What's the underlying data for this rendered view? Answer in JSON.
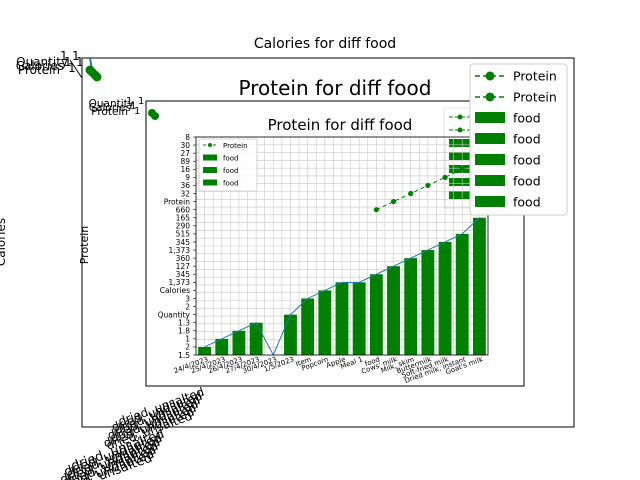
{
  "outer": {
    "title": "Calories for diff food",
    "ylabel": "Calories",
    "legend": [
      {
        "label": "Protein",
        "kind": "line"
      },
      {
        "label": "Protein",
        "kind": "line"
      },
      {
        "label": "food",
        "kind": "bar"
      },
      {
        "label": "food",
        "kind": "bar"
      },
      {
        "label": "food",
        "kind": "bar"
      },
      {
        "label": "food",
        "kind": "bar"
      },
      {
        "label": "food",
        "kind": "bar"
      }
    ],
    "corner_ytick_labels": [
      "Quantity",
      "Calories",
      "Protein"
    ],
    "overlapping_xtick_labels": [
      "dried, unsalted",
      "dried, undiluted"
    ]
  },
  "middle": {
    "title": "Protein for diff food",
    "ylabel": "Protein",
    "corner_ytick_labels": [
      "Quantity",
      "Calories",
      "Protein"
    ]
  },
  "chart_data": {
    "type": "bar",
    "title": "Protein for diff food",
    "xlabel": "",
    "ylabel": "",
    "grid": true,
    "legend_position": "top-left",
    "legend": [
      "Protein",
      "food",
      "food",
      "food"
    ],
    "y_tick_labels": [
      "1.5",
      "2",
      "1",
      "1.8",
      "1.3",
      "Quantity",
      "2",
      "3",
      "Calories",
      "1,373",
      "345",
      "127",
      "360",
      "1,373",
      "345",
      "515",
      "290",
      "165",
      "660",
      "Protein",
      "32",
      "36",
      "9",
      "16",
      "89",
      "27",
      "30",
      "8"
    ],
    "x_tick_labels": [
      "24/4/2023",
      "25/4/2023",
      "26/4/2023",
      "27/4/2023",
      "30/4/2023",
      "1/5/2023",
      "Item",
      "Popcorn",
      "Apple",
      "Meal 1",
      "food",
      "Cows' milk",
      "Milk, skim",
      "Buttermilk",
      "Soft-fried milk",
      "Dried milk, instant",
      "Goat's milk"
    ],
    "bar_color": "#008000",
    "bars": [
      {
        "category": "24/4/2023",
        "value": 1
      },
      {
        "category": "25/4/2023",
        "value": 2
      },
      {
        "category": "26/4/2023",
        "value": 3
      },
      {
        "category": "27/4/2023",
        "value": 4
      },
      {
        "category": "30/4/2023",
        "value": 0
      },
      {
        "category": "1/5/2023",
        "value": 5
      },
      {
        "category": "Item",
        "value": 7
      },
      {
        "category": "Popcorn",
        "value": 8
      },
      {
        "category": "Apple",
        "value": 9
      },
      {
        "category": "Meal 1",
        "value": 9
      },
      {
        "category": "food",
        "value": 10
      },
      {
        "category": "Cows' milk",
        "value": 11
      },
      {
        "category": "Milk, skim",
        "value": 12
      },
      {
        "category": "Buttermilk",
        "value": 13
      },
      {
        "category": "Soft-fried milk",
        "value": 14
      },
      {
        "category": "Dried milk, instant",
        "value": 15
      },
      {
        "category": "Goat's milk",
        "value": 17
      }
    ],
    "series": [
      {
        "name": "Protein",
        "color": "#008000",
        "style": "dashed",
        "marker": "circle",
        "points": [
          {
            "category": "food",
            "value": 18
          },
          {
            "category": "Cows' milk",
            "value": 19
          },
          {
            "category": "Milk, skim",
            "value": 20
          },
          {
            "category": "Buttermilk",
            "value": 21
          },
          {
            "category": "Soft-fried milk",
            "value": 22
          },
          {
            "category": "Dried milk, instant",
            "value": 23
          },
          {
            "category": "Goat's milk",
            "value": 24
          }
        ]
      }
    ],
    "ylim": [
      0,
      27
    ]
  }
}
